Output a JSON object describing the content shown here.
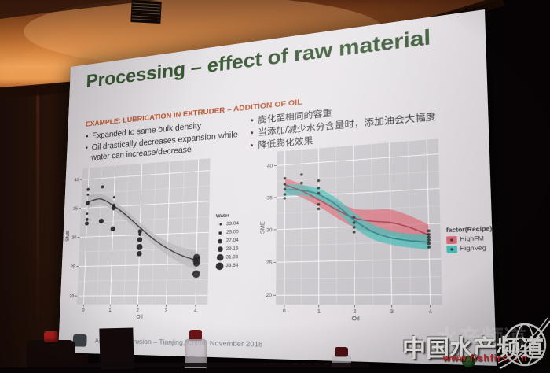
{
  "scene": {
    "watermark": {
      "brand": "中国水产频道",
      "ghost": "水产频道",
      "url": "www.fishfirst.cn",
      "brand_color": "#f3f1ee",
      "url_color": "#d8262a"
    }
  },
  "slide": {
    "title": "Processing – effect of raw material",
    "title_color": "#2e4f2a",
    "subtitle": "EXAMPLE: LUBRICATION IN EXTRUDER – ADDITION OF OIL",
    "subtitle_color": "#b5491f",
    "bullets_en": [
      "Expanded to same bulk density",
      "Oil drastically decreases expansion while water can increase/decrease"
    ],
    "bullets_cn": [
      "膨化至相同的容重",
      "当添加/减少水分含量时，添加油会大幅度",
      "降低膨化效果"
    ],
    "footer": "Aquafeed extrusion – Tianjing, China, November 2018"
  },
  "chart_data": [
    {
      "type": "scatter",
      "xlabel": "Oil",
      "ylabel": "SME",
      "xlim": [
        -0.25,
        4.4
      ],
      "ylim": [
        18.6,
        42.0
      ],
      "xticks": [
        0,
        1,
        2,
        3,
        4
      ],
      "yticks": [
        20,
        25,
        30,
        35,
        40
      ],
      "grid": true,
      "panel_bg": "#cfccd0",
      "grid_color": "#ffffff",
      "point_color": "#141414",
      "legend": {
        "title": "Water",
        "position": "right",
        "values": [
          "23.04",
          "25.00",
          "27.04",
          "29.16",
          "31.36",
          "33.64"
        ]
      },
      "smooth": {
        "name": "loess",
        "x": [
          0,
          0.5,
          1,
          1.5,
          2,
          2.5,
          3,
          3.5,
          4
        ],
        "y": [
          36.0,
          36.4,
          35.1,
          33.3,
          31.2,
          29.2,
          27.6,
          26.4,
          25.6
        ],
        "upper": [
          37.1,
          37.3,
          35.9,
          34.1,
          32.0,
          30.1,
          28.7,
          27.7,
          27.1
        ],
        "lower": [
          34.9,
          35.5,
          34.3,
          32.5,
          30.4,
          28.3,
          26.5,
          25.1,
          24.1
        ],
        "color": "#3a3a3a",
        "fill": "#b9b7ba",
        "opacity": 0.75
      },
      "points": [
        {
          "x": 0,
          "y": 38.2,
          "water": 25.0
        },
        {
          "x": 0,
          "y": 37.3,
          "water": 23.04
        },
        {
          "x": 0,
          "y": 35.8,
          "water": 27.04
        },
        {
          "x": 0,
          "y": 34.0,
          "water": 23.04
        },
        {
          "x": 0,
          "y": 33.0,
          "water": 25.0
        },
        {
          "x": 0,
          "y": 32.3,
          "water": 27.04
        },
        {
          "x": 0.55,
          "y": 38.5,
          "water": 25.0
        },
        {
          "x": 0.55,
          "y": 32.6,
          "water": 29.16
        },
        {
          "x": 1,
          "y": 36.6,
          "water": 23.04
        },
        {
          "x": 1,
          "y": 35.2,
          "water": 25.0
        },
        {
          "x": 1,
          "y": 34.7,
          "water": 27.04
        },
        {
          "x": 1,
          "y": 31.2,
          "water": 29.16
        },
        {
          "x": 2,
          "y": 30.6,
          "water": 27.04
        },
        {
          "x": 2,
          "y": 30.1,
          "water": 25.0
        },
        {
          "x": 2,
          "y": 29.2,
          "water": 29.16
        },
        {
          "x": 2,
          "y": 28.0,
          "water": 31.36
        },
        {
          "x": 2,
          "y": 26.9,
          "water": 29.16
        },
        {
          "x": 4,
          "y": 26.1,
          "water": 31.36
        },
        {
          "x": 4,
          "y": 25.6,
          "water": 33.64
        },
        {
          "x": 4,
          "y": 25.1,
          "water": 31.36
        },
        {
          "x": 4,
          "y": 23.4,
          "water": 33.64
        }
      ]
    },
    {
      "type": "line",
      "xlabel": "Oil",
      "ylabel": "SME",
      "xlim": [
        -0.25,
        4.3
      ],
      "ylim": [
        18.6,
        42.2
      ],
      "xticks": [
        0,
        1,
        2,
        3,
        4
      ],
      "yticks": [
        20,
        25,
        30,
        35,
        40
      ],
      "grid": true,
      "panel_bg": "#cbc8cd",
      "grid_color": "#ffffff",
      "point_color": "#141414",
      "legend": {
        "title": "factor(Recipe)",
        "position": "right",
        "entries": [
          {
            "label": "HighFM",
            "color": "#e0606e"
          },
          {
            "label": "HighVeg",
            "color": "#35bdb7"
          }
        ]
      },
      "series": [
        {
          "name": "HighFM",
          "color": "#a83244",
          "fill": "#e0606e",
          "opacity": 0.72,
          "x": [
            0,
            0.5,
            1,
            1.5,
            2,
            2.5,
            3,
            3.5,
            4
          ],
          "y": [
            36.9,
            35.8,
            34.3,
            32.7,
            31.3,
            30.7,
            30.4,
            29.6,
            28.4
          ],
          "upper": [
            38.0,
            36.8,
            35.3,
            33.9,
            32.7,
            32.4,
            32.3,
            31.3,
            29.9
          ],
          "lower": [
            35.8,
            34.8,
            33.3,
            31.5,
            29.9,
            29.0,
            28.5,
            27.9,
            26.9
          ]
        },
        {
          "name": "HighVeg",
          "color": "#0f7d7a",
          "fill": "#35bdb7",
          "opacity": 0.72,
          "x": [
            0,
            0.5,
            1,
            1.5,
            2,
            2.5,
            3,
            3.5,
            4
          ],
          "y": [
            36.1,
            35.9,
            35.1,
            33.4,
            31.0,
            29.2,
            28.2,
            27.7,
            27.4
          ],
          "upper": [
            37.0,
            36.7,
            36.0,
            34.4,
            32.1,
            30.3,
            29.2,
            28.7,
            28.5
          ],
          "lower": [
            35.2,
            35.1,
            34.2,
            32.4,
            29.9,
            28.1,
            27.2,
            26.7,
            26.3
          ]
        }
      ],
      "points": [
        {
          "x": 0,
          "y": 37.9
        },
        {
          "x": 0,
          "y": 37.0
        },
        {
          "x": 0,
          "y": 36.2
        },
        {
          "x": 0,
          "y": 35.4
        },
        {
          "x": 0,
          "y": 34.8
        },
        {
          "x": 0.5,
          "y": 38.3
        },
        {
          "x": 0.5,
          "y": 37.0
        },
        {
          "x": 1,
          "y": 37.2
        },
        {
          "x": 1,
          "y": 36.1
        },
        {
          "x": 1,
          "y": 35.3
        },
        {
          "x": 1,
          "y": 33.6
        },
        {
          "x": 1,
          "y": 32.9
        },
        {
          "x": 2,
          "y": 31.4
        },
        {
          "x": 2,
          "y": 30.6
        },
        {
          "x": 2,
          "y": 29.9
        },
        {
          "x": 2,
          "y": 29.2
        },
        {
          "x": 4,
          "y": 29.0
        },
        {
          "x": 4,
          "y": 28.5
        },
        {
          "x": 4,
          "y": 28.1
        },
        {
          "x": 4,
          "y": 27.7
        },
        {
          "x": 4,
          "y": 27.2
        },
        {
          "x": 4,
          "y": 26.7
        }
      ]
    }
  ]
}
